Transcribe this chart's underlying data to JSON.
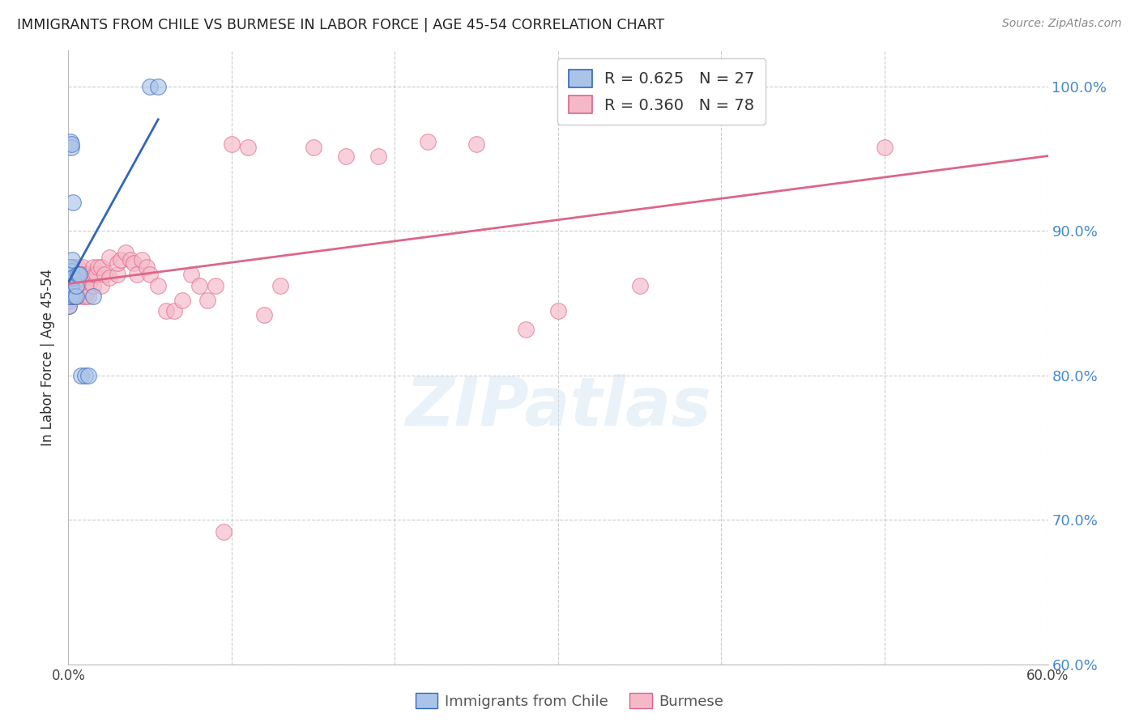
{
  "title": "IMMIGRANTS FROM CHILE VS BURMESE IN LABOR FORCE | AGE 45-54 CORRELATION CHART",
  "source": "Source: ZipAtlas.com",
  "ylabel": "In Labor Force | Age 45-54",
  "y_ticks_right": [
    0.6,
    0.7,
    0.8,
    0.9,
    1.0
  ],
  "y_tick_labels_right": [
    "60.0%",
    "70.0%",
    "80.0%",
    "90.0%",
    "100.0%"
  ],
  "color_chile": "#aac4e8",
  "color_burmese": "#f5b8c8",
  "color_chile_line": "#3366bb",
  "color_burmese_line": "#dd6688",
  "color_right_axis": "#4488cc",
  "background": "#ffffff",
  "chile_x": [
    0.0005,
    0.0008,
    0.001,
    0.001,
    0.0012,
    0.0013,
    0.0014,
    0.0015,
    0.0016,
    0.002,
    0.002,
    0.002,
    0.002,
    0.0025,
    0.003,
    0.003,
    0.004,
    0.005,
    0.005,
    0.006,
    0.007,
    0.008,
    0.01,
    0.012,
    0.015,
    0.05,
    0.055
  ],
  "chile_y": [
    0.848,
    0.872,
    0.855,
    0.862,
    0.868,
    0.875,
    0.875,
    0.962,
    0.958,
    0.855,
    0.862,
    0.872,
    0.96,
    0.88,
    0.868,
    0.92,
    0.855,
    0.855,
    0.862,
    0.87,
    0.87,
    0.8,
    0.8,
    0.8,
    0.855,
    1.0,
    1.0
  ],
  "burmese_x": [
    0.0005,
    0.001,
    0.001,
    0.0015,
    0.0015,
    0.002,
    0.002,
    0.002,
    0.002,
    0.0025,
    0.003,
    0.003,
    0.003,
    0.004,
    0.004,
    0.004,
    0.005,
    0.005,
    0.006,
    0.006,
    0.006,
    0.007,
    0.007,
    0.008,
    0.008,
    0.009,
    0.009,
    0.009,
    0.01,
    0.01,
    0.01,
    0.011,
    0.012,
    0.012,
    0.013,
    0.014,
    0.015,
    0.015,
    0.016,
    0.017,
    0.018,
    0.02,
    0.02,
    0.022,
    0.025,
    0.025,
    0.03,
    0.03,
    0.032,
    0.035,
    0.038,
    0.04,
    0.042,
    0.045,
    0.048,
    0.05,
    0.055,
    0.06,
    0.065,
    0.07,
    0.075,
    0.08,
    0.085,
    0.09,
    0.095,
    0.1,
    0.11,
    0.12,
    0.13,
    0.15,
    0.17,
    0.19,
    0.22,
    0.25,
    0.28,
    0.3,
    0.35,
    0.5
  ],
  "burmese_y": [
    0.848,
    0.852,
    0.862,
    0.855,
    0.87,
    0.855,
    0.86,
    0.87,
    0.875,
    0.862,
    0.855,
    0.862,
    0.87,
    0.858,
    0.865,
    0.875,
    0.86,
    0.87,
    0.855,
    0.862,
    0.875,
    0.86,
    0.87,
    0.858,
    0.87,
    0.855,
    0.865,
    0.875,
    0.855,
    0.862,
    0.87,
    0.858,
    0.855,
    0.87,
    0.865,
    0.87,
    0.862,
    0.875,
    0.87,
    0.87,
    0.875,
    0.862,
    0.875,
    0.87,
    0.868,
    0.882,
    0.87,
    0.878,
    0.88,
    0.885,
    0.88,
    0.878,
    0.87,
    0.88,
    0.875,
    0.87,
    0.862,
    0.845,
    0.845,
    0.852,
    0.87,
    0.862,
    0.852,
    0.862,
    0.692,
    0.96,
    0.958,
    0.842,
    0.862,
    0.958,
    0.952,
    0.952,
    0.962,
    0.96,
    0.832,
    0.845,
    0.862,
    0.958
  ]
}
